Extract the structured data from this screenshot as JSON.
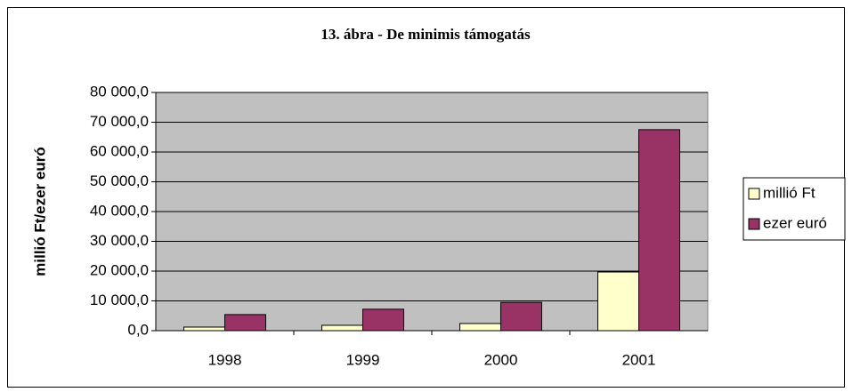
{
  "chart_data": {
    "type": "bar",
    "title": "13. ábra - De minimis támogatás",
    "y_label": "millió Ft/ezer euró",
    "categories": [
      "1998",
      "1999",
      "2000",
      "2001"
    ],
    "series": [
      {
        "name": "millió Ft",
        "color": "#ffffcc",
        "values": [
          1200,
          1800,
          2400,
          19700
        ]
      },
      {
        "name": "ezer euró",
        "color": "#993366",
        "values": [
          5400,
          7200,
          9500,
          67500
        ]
      }
    ],
    "ylim": [
      0,
      80000
    ],
    "yticks": [
      {
        "value": 0,
        "label": "0,0"
      },
      {
        "value": 10000,
        "label": "10 000,0"
      },
      {
        "value": 20000,
        "label": "20 000,0"
      },
      {
        "value": 30000,
        "label": "30 000,0"
      },
      {
        "value": 40000,
        "label": "40 000,0"
      },
      {
        "value": 50000,
        "label": "50 000,0"
      },
      {
        "value": 60000,
        "label": "60 000,0"
      },
      {
        "value": 70000,
        "label": "70 000,0"
      },
      {
        "value": 80000,
        "label": "80 000,0"
      }
    ],
    "grid": true,
    "legend": "right",
    "plot_background": "#c0c0c0"
  }
}
